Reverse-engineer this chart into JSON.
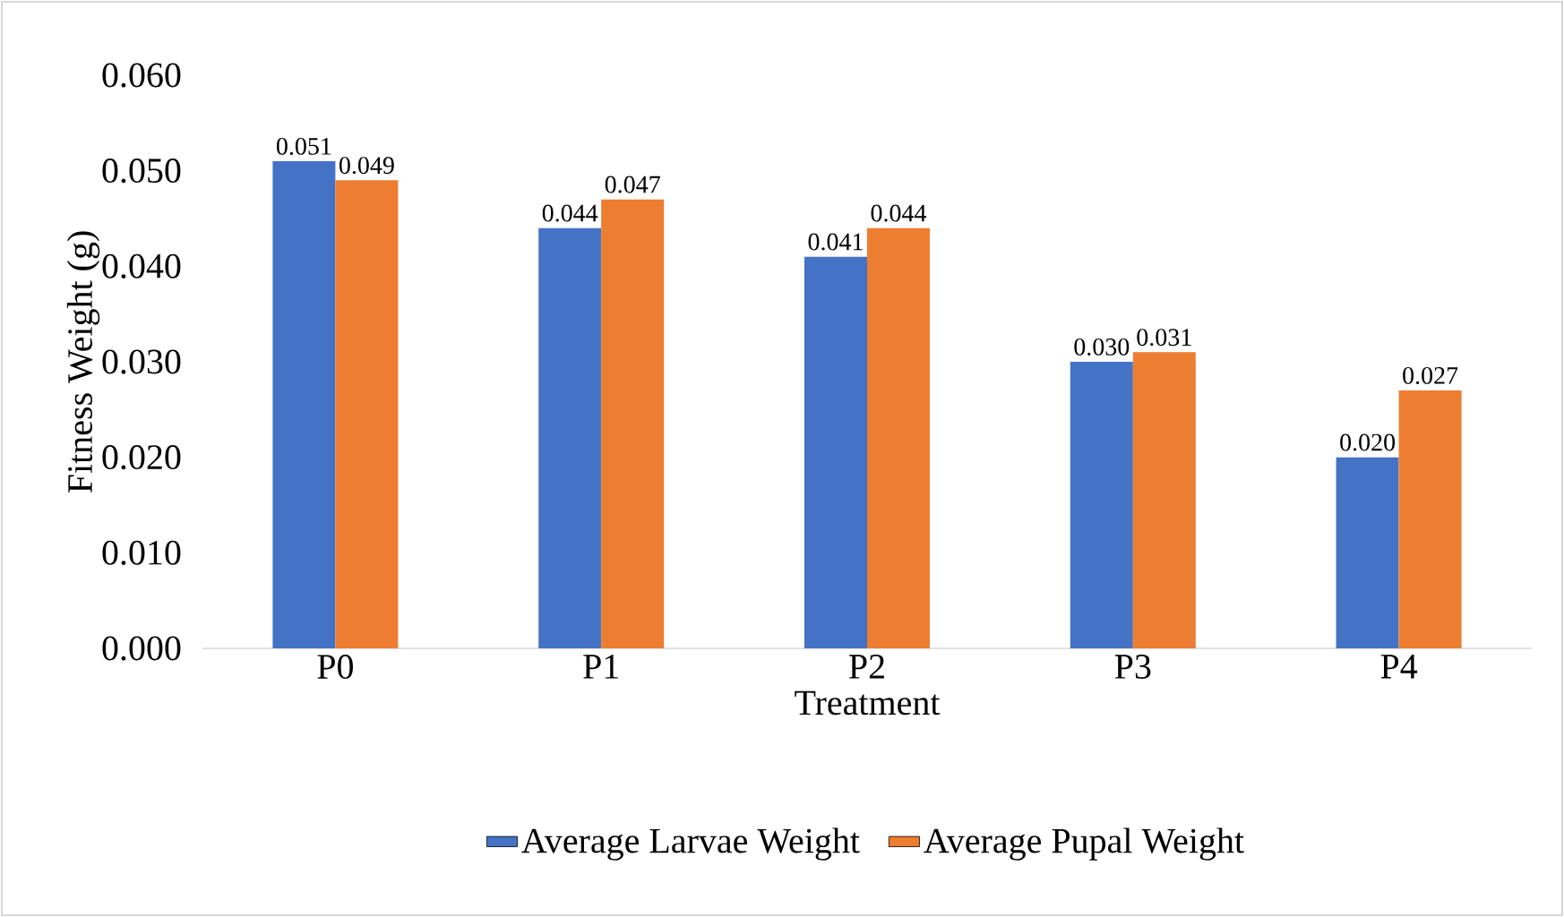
{
  "chart_data": {
    "type": "bar",
    "xlabel": "Treatment",
    "ylabel": "Fitness Weight (g)",
    "categories": [
      "P0",
      "P1",
      "P2",
      "P3",
      "P4"
    ],
    "series": [
      {
        "name": "Average Larvae Weight",
        "color": "#4472c4",
        "values": [
          0.051,
          0.044,
          0.041,
          0.03,
          0.02
        ],
        "value_labels": [
          "0.051",
          "0.044",
          "0.041",
          "0.030",
          "0.020"
        ]
      },
      {
        "name": "Average Pupal Weight",
        "color": "#ed7d31",
        "values": [
          0.049,
          0.047,
          0.044,
          0.031,
          0.027
        ],
        "value_labels": [
          "0.049",
          "0.047",
          "0.044",
          "0.031",
          "0.027"
        ]
      }
    ],
    "ylim": [
      0,
      0.06
    ],
    "yticks": [
      {
        "value": 0,
        "label": "0.000"
      },
      {
        "value": 0.01,
        "label": "0.010"
      },
      {
        "value": 0.02,
        "label": "0.020"
      },
      {
        "value": 0.03,
        "label": "0.030"
      },
      {
        "value": 0.04,
        "label": "0.040"
      },
      {
        "value": 0.05,
        "label": "0.050"
      },
      {
        "value": 0.06,
        "label": "0.060"
      }
    ],
    "grid": false,
    "legend": "bottom"
  }
}
